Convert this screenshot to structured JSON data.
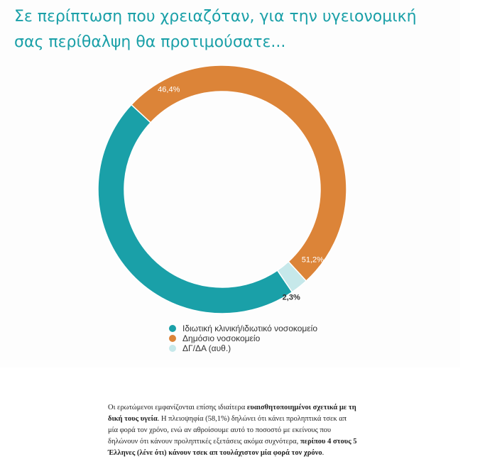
{
  "title": "Σε περίπτωση που χρειαζόταν, για την υγειονομική σας περίθαλψη θα προτιμούσατε...",
  "chart_data": {
    "type": "donut",
    "title": "Σε περίπτωση που χρειαζόταν, για την υγειονομική σας περίθαλψη θα προτιμούσατε...",
    "series": [
      {
        "name": "Ιδιωτική κλινική/ιδιωτικό νοσοκομείο",
        "value": 46.4,
        "label": "46,4%",
        "color": "#1aa0a8"
      },
      {
        "name": "Δημόσιο νοσοκομείο",
        "value": 51.2,
        "label": "51,2%",
        "color": "#dc8438"
      },
      {
        "name": "ΔΓ/ΔΑ (αυθ.)",
        "value": 2.3,
        "label": "2,3%",
        "color": "#c6e8ea"
      }
    ],
    "legend_position": "bottom"
  },
  "article": {
    "t1": "Οι ερωτώμενοι εμφανίζονται επίσης ιδιαίτερα ",
    "b1": "ευαισθητοποιημένοι σχετικά με τη δική τους υγεία",
    "t2": ". Η πλειοψηφία (58,1%) δηλώνει ότι κάνει προληπτικά τσεκ απ μία φορά τον χρόνο, ενώ αν αθροίσουμε αυτό το ποσοστό με εκείνους που δηλώνουν ότι κάνουν προληπτικές εξετάσεις ακόμα συχνότερα, ",
    "b2": "περίπου 4 στους 5 Έλληνες (λένε ότι) κάνουν τσεκ απ τουλάχιστον μία φορά τον χρόνο",
    "t3": "."
  }
}
